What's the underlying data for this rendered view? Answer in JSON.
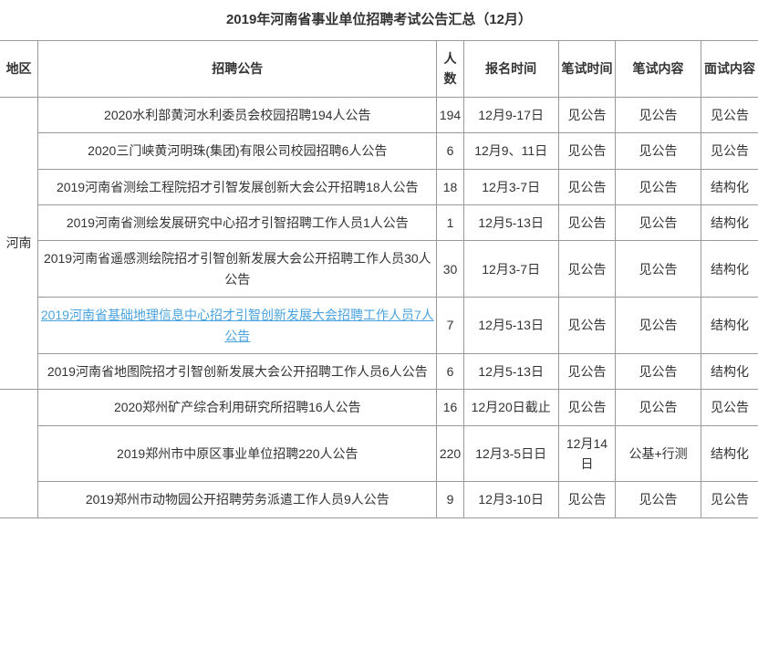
{
  "title": "2019年河南省事业单位招聘考试公告汇总（12月）",
  "columns": {
    "region": "地区",
    "notice": "招聘公告",
    "count": "人数",
    "signup_time": "报名时间",
    "written_time": "笔试时间",
    "written_content": "笔试内容",
    "interview_content": "面试内容"
  },
  "column_widths": {
    "region": 40,
    "notice": 420,
    "count": 28,
    "signup": 100,
    "wtime": 60,
    "wcontent": 90,
    "icontent": 60
  },
  "link_color": "#4aa3df",
  "border_color": "#999999",
  "text_color": "#333333",
  "font_size": 14,
  "regions": [
    {
      "name": "河南",
      "rows": [
        {
          "notice": "2020水利部黄河水利委员会校园招聘194人公告",
          "count": "194",
          "signup": "12月9-17日",
          "wt": "见公告",
          "wc": "见公告",
          "ic": "见公告",
          "link": false
        },
        {
          "notice": "2020三门峡黄河明珠(集团)有限公司校园招聘6人公告",
          "count": "6",
          "signup": "12月9、11日",
          "wt": "见公告",
          "wc": "见公告",
          "ic": "见公告",
          "link": false
        },
        {
          "notice": "2019河南省测绘工程院招才引智发展创新大会公开招聘18人公告",
          "count": "18",
          "signup": "12月3-7日",
          "wt": "见公告",
          "wc": "见公告",
          "ic": "结构化",
          "link": false
        },
        {
          "notice": "2019河南省测绘发展研究中心招才引智招聘工作人员1人公告",
          "count": "1",
          "signup": "12月5-13日",
          "wt": "见公告",
          "wc": "见公告",
          "ic": "结构化",
          "link": false
        },
        {
          "notice": "2019河南省遥感测绘院招才引智创新发展大会公开招聘工作人员30人公告",
          "count": "30",
          "signup": "12月3-7日",
          "wt": "见公告",
          "wc": "见公告",
          "ic": "结构化",
          "link": false
        },
        {
          "notice": "2019河南省基础地理信息中心招才引智创新发展大会招聘工作人员7人公告",
          "count": "7",
          "signup": "12月5-13日",
          "wt": "见公告",
          "wc": "见公告",
          "ic": "结构化",
          "link": true
        },
        {
          "notice": "2019河南省地图院招才引智创新发展大会公开招聘工作人员6人公告",
          "count": "6",
          "signup": "12月5-13日",
          "wt": "见公告",
          "wc": "见公告",
          "ic": "结构化",
          "link": false
        }
      ]
    },
    {
      "name": "",
      "rows": [
        {
          "notice": "2020郑州矿产综合利用研究所招聘16人公告",
          "count": "16",
          "signup": "12月20日截止",
          "wt": "见公告",
          "wc": "见公告",
          "ic": "见公告",
          "link": false
        },
        {
          "notice": "2019郑州市中原区事业单位招聘220人公告",
          "count": "220",
          "signup": "12月3-5日日",
          "wt": "12月14日",
          "wc": "公基+行测",
          "ic": "结构化",
          "link": false
        },
        {
          "notice": "2019郑州市动物园公开招聘劳务派遣工作人员9人公告",
          "count": "9",
          "signup": "12月3-10日",
          "wt": "见公告",
          "wc": "见公告",
          "ic": "见公告",
          "link": false
        }
      ]
    }
  ]
}
